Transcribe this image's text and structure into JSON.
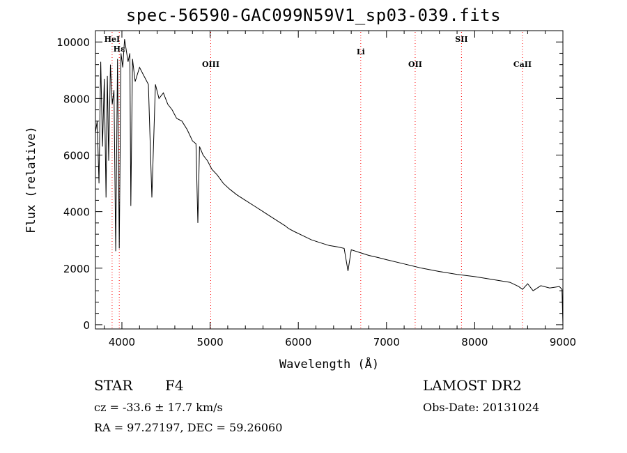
{
  "title": "spec-56590-GAC099N59V1_sp03-039.fits",
  "info": {
    "class_label": "STAR",
    "subclass": "F4",
    "survey": "LAMOST DR2",
    "cz": "cz = -33.6 ± 17.7 km/s",
    "obs_date": "Obs-Date: 20131024",
    "coords": "RA =  97.27197, DEC =  59.26060"
  },
  "chart_data": {
    "type": "line",
    "title": "spec-56590-GAC099N59V1_sp03-039.fits",
    "xlabel": "Wavelength (Å)",
    "ylabel": "Flux (relative)",
    "xlim": [
      3700,
      9000
    ],
    "ylim": [
      -150,
      10400
    ],
    "xticks": [
      4000,
      5000,
      6000,
      7000,
      8000,
      9000
    ],
    "yticks": [
      0,
      2000,
      4000,
      6000,
      8000,
      10000
    ],
    "grid": false,
    "line_color": "#000000",
    "marker_color": "#ff0000",
    "series": [
      {
        "x": [
          3700,
          3720,
          3740,
          3760,
          3780,
          3800,
          3820,
          3835,
          3850,
          3870,
          3890,
          3910,
          3930,
          3950,
          3970,
          3990,
          4010,
          4030,
          4050,
          4070,
          4090,
          4101,
          4120,
          4150,
          4200,
          4250,
          4300,
          4340,
          4380,
          4420,
          4470,
          4520,
          4570,
          4620,
          4680,
          4740,
          4800,
          4840,
          4861,
          4880,
          4920,
          4970,
          5020,
          5080,
          5150,
          5220,
          5300,
          5400,
          5500,
          5600,
          5700,
          5800,
          5850,
          5890,
          5950,
          6050,
          6150,
          6250,
          6350,
          6450,
          6520,
          6563,
          6600,
          6700,
          6800,
          6900,
          7000,
          7200,
          7400,
          7600,
          7800,
          8000,
          8200,
          8400,
          8498,
          8542,
          8600,
          8662,
          8750,
          8850,
          8960,
          8990,
          9000
        ],
        "y": [
          6800,
          7200,
          5000,
          9300,
          6300,
          8700,
          4500,
          8800,
          5800,
          9200,
          7800,
          8300,
          2600,
          9400,
          2700,
          9600,
          9100,
          10100,
          9700,
          9300,
          9600,
          4200,
          9400,
          8600,
          9100,
          8800,
          8500,
          4500,
          8500,
          8000,
          8200,
          7800,
          7600,
          7300,
          7200,
          6900,
          6500,
          6400,
          3600,
          6300,
          6000,
          5800,
          5500,
          5300,
          5000,
          4800,
          4600,
          4400,
          4200,
          4000,
          3800,
          3600,
          3500,
          3400,
          3300,
          3150,
          3000,
          2900,
          2800,
          2750,
          2700,
          1900,
          2650,
          2550,
          2450,
          2380,
          2300,
          2150,
          2000,
          1880,
          1780,
          1700,
          1600,
          1500,
          1350,
          1250,
          1450,
          1200,
          1380,
          1300,
          1350,
          1250,
          0
        ]
      }
    ],
    "line_markers": [
      {
        "label": "Hε",
        "x": 3970
      },
      {
        "label": "HeI",
        "x": 3889
      },
      {
        "label": "OIII",
        "x": 5007
      },
      {
        "label": "Li",
        "x": 6708
      },
      {
        "label": "OII",
        "x": 7325
      },
      {
        "label": "SII",
        "x": 7850
      },
      {
        "label": "CaII",
        "x": 8542
      }
    ]
  }
}
